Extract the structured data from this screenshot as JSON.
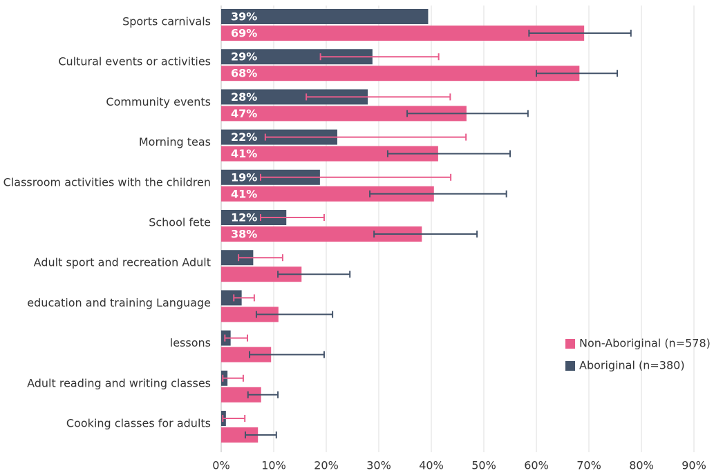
{
  "chart_data": {
    "type": "bar",
    "orientation": "horizontal",
    "categories": [
      "Sports carnivals",
      "Cultural events or activities",
      "Community events",
      "Morning teas",
      "Classroom activities with the children",
      "School fete",
      "Adult sport and recreation Adult",
      "education and training Language",
      "lessons",
      "Adult reading and writing classes",
      "Cooking classes for adults"
    ],
    "series": [
      {
        "name": "Non-Aboriginal (n=578)",
        "color": "#e95c8b",
        "error_color": "#44546a",
        "values": [
          69.1,
          68.2,
          46.7,
          41.3,
          40.5,
          38.2,
          15.3,
          10.9,
          9.5,
          7.6,
          7.0
        ],
        "value_labels": [
          "69%",
          "68%",
          "47%",
          "41%",
          "41%",
          "38%",
          null,
          null,
          null,
          null,
          null
        ],
        "ci": [
          [
            58.6,
            78.0
          ],
          [
            60.0,
            75.4
          ],
          [
            35.4,
            58.4
          ],
          [
            31.7,
            55.0
          ],
          [
            28.3,
            54.3
          ],
          [
            29.1,
            48.7
          ],
          [
            10.8,
            24.5
          ],
          [
            6.7,
            21.2
          ],
          [
            5.4,
            19.6
          ],
          [
            5.1,
            10.8
          ],
          [
            4.6,
            10.5
          ]
        ]
      },
      {
        "name": "Aboriginal (n=380)",
        "color": "#44546a",
        "error_color": "#e95c8b",
        "values": [
          39.4,
          28.8,
          27.9,
          22.1,
          18.8,
          12.4,
          6.1,
          3.9,
          1.8,
          1.2,
          0.9
        ],
        "value_labels": [
          "39%",
          "29%",
          "28%",
          "22%",
          "19%",
          "12%",
          null,
          null,
          null,
          null,
          null
        ],
        "ci": [
          null,
          [
            18.9,
            41.4
          ],
          [
            16.2,
            43.6
          ],
          [
            8.4,
            46.6
          ],
          [
            7.5,
            43.7
          ],
          [
            7.5,
            19.6
          ],
          [
            3.3,
            11.7
          ],
          [
            2.4,
            6.3
          ],
          [
            0.7,
            5.0
          ],
          [
            0.3,
            4.2
          ],
          [
            0.3,
            4.5
          ]
        ]
      }
    ],
    "xlim": [
      0,
      90
    ],
    "xticks": [
      {
        "value": 0,
        "label": "0%"
      },
      {
        "value": 10,
        "label": "10%"
      },
      {
        "value": 20,
        "label": "20%"
      },
      {
        "value": 30,
        "label": "30%"
      },
      {
        "value": 40,
        "label": "40%"
      },
      {
        "value": 50,
        "label": "50%"
      },
      {
        "value": 60,
        "label": "60%"
      },
      {
        "value": 70,
        "label": "70%"
      },
      {
        "value": 80,
        "label": "80%"
      },
      {
        "value": 90,
        "label": "90%"
      }
    ],
    "grid": true,
    "legend": "lower right"
  }
}
